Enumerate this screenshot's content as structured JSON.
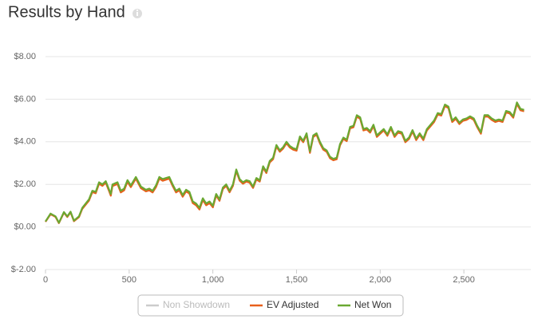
{
  "chart_data": {
    "type": "line",
    "title": "Results by Hand",
    "x": [
      0,
      30,
      60,
      80,
      110,
      130,
      150,
      170,
      200,
      220,
      260,
      280,
      300,
      320,
      340,
      360,
      380,
      390,
      400,
      430,
      450,
      470,
      490,
      510,
      540,
      570,
      600,
      620,
      640,
      660,
      680,
      700,
      720,
      740,
      760,
      780,
      800,
      820,
      840,
      860,
      880,
      900,
      920,
      940,
      960,
      980,
      1000,
      1020,
      1040,
      1060,
      1080,
      1100,
      1120,
      1140,
      1160,
      1180,
      1200,
      1220,
      1240,
      1260,
      1280,
      1300,
      1320,
      1340,
      1360,
      1380,
      1400,
      1420,
      1440,
      1460,
      1480,
      1500,
      1520,
      1540,
      1560,
      1580,
      1600,
      1620,
      1640,
      1660,
      1680,
      1700,
      1720,
      1740,
      1760,
      1780,
      1800,
      1820,
      1840,
      1860,
      1880,
      1900,
      1920,
      1940,
      1960,
      1980,
      2000,
      2021,
      2043,
      2064,
      2086,
      2107,
      2129,
      2150,
      2172,
      2193,
      2215,
      2236,
      2258,
      2279,
      2301,
      2322,
      2344,
      2365,
      2387,
      2408,
      2430,
      2451,
      2473,
      2494,
      2516,
      2537,
      2559,
      2580,
      2602,
      2623,
      2645,
      2666,
      2688,
      2709,
      2731,
      2752,
      2774,
      2795,
      2817,
      2838,
      2860
    ],
    "series": [
      {
        "name": "Non Showdown",
        "color": "#cccccc",
        "visible": false
      },
      {
        "name": "EV Adjusted",
        "color": "#e8601c",
        "visible": true,
        "values": [
          0.24,
          0.6,
          0.47,
          0.18,
          0.67,
          0.47,
          0.69,
          0.27,
          0.46,
          0.85,
          1.24,
          1.64,
          1.58,
          2.03,
          1.93,
          2.08,
          1.68,
          1.47,
          1.92,
          2.02,
          1.62,
          1.72,
          2.12,
          1.87,
          2.27,
          1.82,
          1.67,
          1.72,
          1.62,
          1.87,
          2.27,
          2.17,
          2.22,
          2.27,
          1.92,
          1.62,
          1.72,
          1.42,
          1.67,
          1.57,
          1.12,
          1.02,
          0.82,
          1.27,
          1.02,
          1.12,
          0.92,
          1.48,
          1.23,
          1.78,
          1.93,
          1.63,
          1.93,
          2.63,
          2.18,
          2.03,
          2.13,
          2.08,
          1.83,
          2.23,
          2.13,
          2.78,
          2.53,
          3.03,
          3.18,
          3.78,
          3.53,
          3.68,
          3.93,
          3.73,
          3.63,
          3.58,
          4.18,
          3.98,
          4.33,
          3.48,
          4.23,
          4.33,
          3.93,
          3.63,
          3.53,
          3.23,
          3.13,
          3.18,
          3.83,
          4.13,
          4.03,
          4.63,
          4.68,
          5.18,
          5.08,
          4.53,
          4.58,
          4.43,
          4.73,
          4.23,
          4.38,
          4.53,
          4.28,
          4.63,
          4.23,
          4.43,
          4.38,
          3.98,
          4.13,
          4.48,
          4.08,
          4.33,
          4.08,
          4.53,
          4.73,
          4.93,
          5.28,
          5.23,
          5.68,
          5.58,
          4.93,
          5.08,
          4.83,
          4.98,
          5.03,
          5.13,
          5.03,
          4.68,
          4.38,
          5.18,
          5.18,
          5.03,
          4.93,
          4.98,
          4.93,
          5.38,
          5.33,
          5.13,
          5.78,
          5.48,
          5.43
        ]
      },
      {
        "name": "Net Won",
        "color": "#6aa832",
        "visible": true,
        "values": [
          0.26,
          0.63,
          0.5,
          0.2,
          0.7,
          0.5,
          0.72,
          0.3,
          0.5,
          0.9,
          1.3,
          1.7,
          1.65,
          2.1,
          2.0,
          2.15,
          1.75,
          1.55,
          2.0,
          2.1,
          1.7,
          1.8,
          2.2,
          1.95,
          2.35,
          1.9,
          1.75,
          1.8,
          1.7,
          1.95,
          2.35,
          2.25,
          2.3,
          2.35,
          2.0,
          1.7,
          1.8,
          1.5,
          1.75,
          1.65,
          1.2,
          1.1,
          0.9,
          1.35,
          1.1,
          1.2,
          1.0,
          1.55,
          1.3,
          1.85,
          2.0,
          1.7,
          2.0,
          2.7,
          2.25,
          2.1,
          2.2,
          2.15,
          1.9,
          2.3,
          2.2,
          2.85,
          2.6,
          3.1,
          3.25,
          3.85,
          3.6,
          3.75,
          4.0,
          3.8,
          3.7,
          3.65,
          4.25,
          4.05,
          4.4,
          3.55,
          4.3,
          4.4,
          4.0,
          3.7,
          3.6,
          3.3,
          3.2,
          3.25,
          3.9,
          4.2,
          4.1,
          4.7,
          4.75,
          5.25,
          5.15,
          4.6,
          4.65,
          4.5,
          4.8,
          4.3,
          4.45,
          4.6,
          4.35,
          4.7,
          4.3,
          4.5,
          4.45,
          4.05,
          4.2,
          4.55,
          4.15,
          4.4,
          4.15,
          4.6,
          4.8,
          5.0,
          5.35,
          5.3,
          5.75,
          5.65,
          5.0,
          5.15,
          4.9,
          5.05,
          5.1,
          5.2,
          5.1,
          4.75,
          4.45,
          5.25,
          5.25,
          5.1,
          5.0,
          5.05,
          5.0,
          5.45,
          5.4,
          5.2,
          5.85,
          5.55,
          5.5
        ]
      }
    ],
    "xlim": [
      0,
      2900
    ],
    "xticks": [
      0,
      500,
      {
        "value": 1000,
        "label": "1,000"
      },
      {
        "value": 1500,
        "label": "1,500"
      },
      {
        "value": 2000,
        "label": "2,000"
      },
      {
        "value": 2500,
        "label": "2,500"
      }
    ],
    "ylim": [
      -2,
      8
    ],
    "yticks": [
      {
        "value": -2,
        "label": "$-2.00"
      },
      {
        "value": 0,
        "label": "$0.00"
      },
      {
        "value": 2,
        "label": "$2.00"
      },
      {
        "value": 4,
        "label": "$4.00"
      },
      {
        "value": 6,
        "label": "$6.00"
      },
      {
        "value": 8,
        "label": "$8.00"
      }
    ],
    "grid": true,
    "legend": "bottom"
  }
}
